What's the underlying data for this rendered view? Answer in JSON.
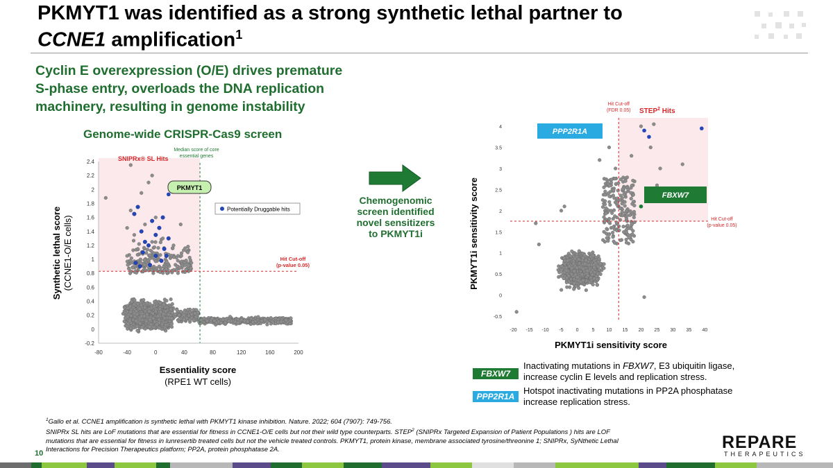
{
  "title_line1": "PKMYT1 was identified as a strong synthetic lethal partner to",
  "title_line2_italic": "CCNE1",
  "title_line2_rest": " amplification",
  "title_superscript": "1",
  "subtitle": [
    "Cyclin E overexpression (O/E) drives premature",
    "S-phase entry, overloads the DNA replication",
    "machinery, resulting in genome instability"
  ],
  "center_text": [
    "Chemogenomic",
    "screen identified",
    "novel sensitizers",
    "to PKMYT1i"
  ],
  "legend": [
    {
      "badge": "FBXW7",
      "color": "#1f7a34",
      "line1_pre": "Inactivating mutations in ",
      "line1_italic": "FBXW7",
      "line1_post": ", E3 ubiquitin ligase,",
      "line2": "increase cyclin E levels and replication stress."
    },
    {
      "badge": "PPP2R1A",
      "color": "#29abe2",
      "line1": "Hotspot inactivating mutations in PP2A phosphatase",
      "line2": "increase replication stress."
    }
  ],
  "footnote": {
    "sup1": "1",
    "line1": "Gallo et al. CCNE1 amplification is synthetic lethal with PKMYT1 kinase inhibition. Nature. 2022; 604 (7907): 749-756.",
    "line2a": "SNIPRx SL hits are LoF mutations that are essential for fitness in CCNE1-O/E cells but not their wild type counterparts. STEP",
    "sup2": "2",
    "line2b": " (SNIPRx Targeted Expansion of Patient Populations ) hits are LOF",
    "line3": "mutations that are essential for fitness in lunresertib treated cells but not the vehicle treated controls. PKMYT1, protein kinase, membrane associated tyrosine/threonine 1; SNIPRx, SyNthetic Lethal",
    "line4": "Interactions for Precision Therapeutics platform; PP2A, protein phosphatase 2A."
  },
  "page_number": "10",
  "logo": {
    "name": "REPARE",
    "sub": "THERAPEUTICS"
  },
  "colors": {
    "green": "#1f6e2f",
    "hit_shade": "#fbe9ec",
    "cutoff_red": "#d62728",
    "dot_gray": "#8c8c8c",
    "dot_blue": "#2346b8",
    "dot_green": "#1f7a34"
  },
  "chart_data": [
    {
      "type": "scatter",
      "title": "Genome-wide CRISPR-Cas9 screen",
      "xlabel": "Essentiality score",
      "xlabel_sub": "(RPE1 WT cells)",
      "ylabel": "Synthetic lethal score",
      "ylabel_sub": "(CCNE1-O/E cells)",
      "xlim": [
        -80,
        200
      ],
      "ylim": [
        -0.2,
        2.4
      ],
      "xticks": [
        "-80",
        "-40",
        "0",
        "40",
        "80",
        "120",
        "160",
        "200"
      ],
      "yticks": [
        "-0.2",
        "0",
        "0.2",
        "0.4",
        "0.6",
        "0.8",
        "1",
        "1.2",
        "1.4",
        "1.6",
        "1.8",
        "2",
        "2.2",
        "2.4"
      ],
      "hit_region_label": "SNIPRx® SL Hits",
      "median_line_label": [
        "Median score of core",
        "essential genes"
      ],
      "median_x": 62,
      "cutoff_y": 0.83,
      "cutoff_label": [
        "Hit Cut-off",
        "(p-value 0.05)"
      ],
      "highlight_label": "PKMYT1",
      "highlight_point": {
        "x": 18,
        "y": 1.93
      },
      "legend": "Potentially Druggable hits",
      "gray_points_note": "dense cloud of several thousand genes near y 0 to 0.8",
      "outliers": [
        [
          -70,
          1.88
        ],
        [
          -35,
          2.35
        ],
        [
          -5,
          2.2
        ],
        [
          -10,
          2.1
        ],
        [
          -20,
          1.95
        ],
        [
          20,
          2.05
        ],
        [
          -40,
          1.45
        ],
        [
          -35,
          1.7
        ],
        [
          -30,
          1.35
        ],
        [
          -25,
          1.15
        ],
        [
          -40,
          1.05
        ],
        [
          -15,
          1.5
        ],
        [
          0,
          1.6
        ],
        [
          10,
          1.3
        ],
        [
          25,
          1.2
        ],
        [
          35,
          1.5
        ],
        [
          45,
          1.1
        ],
        [
          50,
          0.95
        ],
        [
          5,
          1.0
        ],
        [
          -5,
          1.25
        ],
        [
          30,
          0.9
        ]
      ],
      "druggable_points": [
        [
          -30,
          1.65
        ],
        [
          -25,
          1.75
        ],
        [
          -20,
          1.4
        ],
        [
          -15,
          1.25
        ],
        [
          -10,
          1.2
        ],
        [
          -5,
          1.55
        ],
        [
          0,
          1.35
        ],
        [
          5,
          1.45
        ],
        [
          10,
          1.6
        ],
        [
          12,
          1.15
        ],
        [
          15,
          1.05
        ],
        [
          -28,
          0.95
        ],
        [
          -22,
          0.9
        ],
        [
          -18,
          1.1
        ],
        [
          0,
          1.05
        ],
        [
          8,
          0.98
        ],
        [
          18,
          1.3
        ],
        [
          -8,
          0.92
        ]
      ]
    },
    {
      "type": "scatter",
      "xlabel": "PKMYT1i sensitivity score",
      "ylabel": "PKMYT1i sensitivity score",
      "xlim": [
        -20,
        40
      ],
      "ylim": [
        -0.5,
        4
      ],
      "xticks": [
        "-20",
        "-15",
        "-10",
        "-5",
        "0",
        "5",
        "10",
        "15",
        "20",
        "25",
        "30",
        "35",
        "40"
      ],
      "yticks": [
        "-0.5",
        "0",
        "0.5",
        "1",
        "1.5",
        "2",
        "2.5",
        "3",
        "3.5",
        "4"
      ],
      "hit_region_label": "STEP",
      "hit_region_sup": "2",
      "hit_region_suffix": " Hits",
      "fdr_cutoff_x": 13,
      "fdr_label": [
        "Hit Cut-off",
        "(FDR 0.05)"
      ],
      "pvalue_cutoff_y": 1.75,
      "pvalue_label": [
        "Hit Cut-off",
        "(p-value 0.05)"
      ],
      "labels": [
        {
          "text": "PPP2R1A",
          "gene": "PPP2R1A",
          "point": {
            "x": 21,
            "y": 3.9
          }
        },
        {
          "text": "FBXW7",
          "gene": "FBXW7",
          "point": {
            "x": 20,
            "y": 2.1
          }
        }
      ],
      "highlighted": [
        {
          "x": 21,
          "y": 3.9,
          "color": "blue"
        },
        {
          "x": 22.5,
          "y": 3.75,
          "color": "blue"
        },
        {
          "x": 39,
          "y": 3.95,
          "color": "blue"
        },
        {
          "x": 20,
          "y": 2.1,
          "color": "green"
        }
      ],
      "outliers": [
        [
          23,
          3.5
        ],
        [
          26,
          3.0
        ],
        [
          33,
          3.1
        ],
        [
          25,
          2.6
        ],
        [
          30,
          2.4
        ],
        [
          17,
          3.3
        ],
        [
          20,
          4.0
        ],
        [
          24,
          4.05
        ],
        [
          10,
          3.5
        ],
        [
          7,
          3.2
        ],
        [
          12,
          3.0
        ],
        [
          -4,
          2.1
        ],
        [
          -5,
          2.0
        ],
        [
          -13,
          1.7
        ],
        [
          21,
          -0.05
        ],
        [
          -19,
          -0.4
        ],
        [
          -12,
          1.2
        ],
        [
          16,
          2.5
        ]
      ],
      "gray_points_note": "dense cloud centred near x 0, y 0.5"
    }
  ]
}
